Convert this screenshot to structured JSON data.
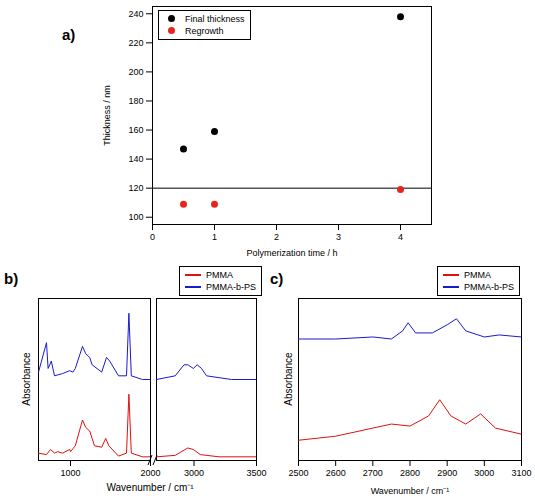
{
  "chart_data": [
    {
      "type": "scatter",
      "title": "a)",
      "x_label": "Polymerization time / h",
      "y_label": "Thickness / nm",
      "xlim": [
        0,
        4.5
      ],
      "xticks": [
        0,
        1,
        2,
        3,
        4
      ],
      "ylim": [
        95,
        245
      ],
      "yticks": [
        100,
        120,
        140,
        160,
        180,
        200,
        220,
        240
      ],
      "reference_line": 120,
      "legend": "top-left",
      "series": [
        {
          "name": "Final thickness",
          "color": "#000000",
          "marker": "circle",
          "x": [
            0.5,
            1,
            4
          ],
          "values": [
            147,
            159,
            238
          ]
        },
        {
          "name": "Regrowth",
          "color": "#e8251c",
          "marker": "circle",
          "x": [
            0.5,
            1,
            4
          ],
          "values": [
            109,
            109,
            119
          ]
        }
      ]
    },
    {
      "type": "line",
      "title": "b)",
      "x_label": "Wavenumber / cm⁻¹",
      "y_label": "Absorbance",
      "x_segments": [
        {
          "xlim": [
            600,
            2000
          ],
          "xticks": [
            1000,
            2000
          ]
        },
        {
          "xlim": [
            2700,
            3500
          ],
          "xticks": [
            3000,
            3500
          ]
        }
      ],
      "ylim": [
        0,
        2.2
      ],
      "tick_labels": "x",
      "legend": "top-right",
      "series": [
        {
          "name": "PMMA",
          "color": "#e01010",
          "x": [
            600,
            700,
            750,
            800,
            840,
            900,
            990,
            1000,
            1060,
            1150,
            1190,
            1240,
            1270,
            1300,
            1390,
            1440,
            1480,
            1600,
            1700,
            1730,
            1760,
            1900,
            2000,
            2700,
            2850,
            2950,
            2995,
            3050,
            3200,
            3500
          ],
          "values": [
            0.1,
            0.08,
            0.15,
            0.1,
            0.12,
            0.1,
            0.15,
            0.12,
            0.2,
            0.55,
            0.45,
            0.4,
            0.3,
            0.2,
            0.18,
            0.3,
            0.2,
            0.06,
            0.1,
            0.9,
            0.1,
            0.05,
            0.05,
            0.05,
            0.07,
            0.17,
            0.15,
            0.08,
            0.05,
            0.05
          ]
        },
        {
          "name": "PMMA-b-PS",
          "color": "#1a1ad0",
          "x": [
            600,
            700,
            720,
            760,
            800,
            900,
            990,
            1030,
            1060,
            1150,
            1190,
            1240,
            1270,
            1390,
            1450,
            1490,
            1600,
            1700,
            1730,
            1760,
            1900,
            2000,
            2700,
            2850,
            2920,
            2950,
            2995,
            3025,
            3060,
            3100,
            3300,
            3500
          ],
          "values": [
            1.2,
            1.6,
            1.25,
            1.35,
            1.15,
            1.18,
            1.22,
            1.2,
            1.25,
            1.55,
            1.45,
            1.4,
            1.3,
            1.2,
            1.4,
            1.35,
            1.15,
            1.15,
            2.0,
            1.15,
            1.1,
            1.1,
            1.1,
            1.15,
            1.3,
            1.3,
            1.25,
            1.3,
            1.25,
            1.15,
            1.1,
            1.1
          ]
        }
      ]
    },
    {
      "type": "line",
      "title": "c)",
      "x_label": "Wavenumber / cm⁻¹",
      "y_label": "Absorbance",
      "xlim": [
        2500,
        3100
      ],
      "xticks": [
        2500,
        2600,
        2700,
        2800,
        2900,
        3000,
        3100
      ],
      "ylim": [
        0.2,
        1.0
      ],
      "tick_labels": "x",
      "legend": "top-right",
      "series": [
        {
          "name": "PMMA",
          "color": "#e01010",
          "x": [
            2500,
            2600,
            2700,
            2750,
            2800,
            2850,
            2880,
            2910,
            2950,
            2990,
            3030,
            3100
          ],
          "values": [
            0.3,
            0.32,
            0.36,
            0.38,
            0.37,
            0.42,
            0.5,
            0.42,
            0.38,
            0.43,
            0.36,
            0.33
          ]
        },
        {
          "name": "PMMA-b-PS",
          "color": "#1a1ad0",
          "x": [
            2500,
            2600,
            2700,
            2750,
            2780,
            2795,
            2815,
            2860,
            2900,
            2925,
            2950,
            3000,
            3040,
            3100
          ],
          "values": [
            0.8,
            0.8,
            0.81,
            0.8,
            0.84,
            0.88,
            0.83,
            0.83,
            0.87,
            0.9,
            0.84,
            0.81,
            0.82,
            0.81
          ]
        }
      ]
    }
  ]
}
